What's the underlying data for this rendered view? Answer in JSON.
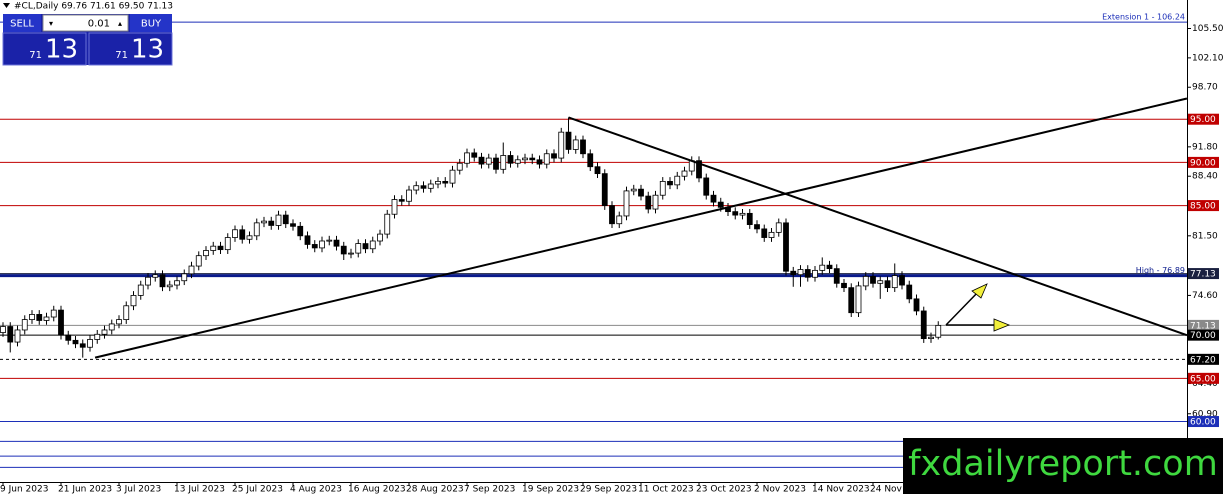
{
  "header": {
    "text": "#CL,Daily 69.76 71.61 69.50 71.13"
  },
  "trade_panel": {
    "sell": "SELL",
    "buy": "BUY",
    "lot": "0.01",
    "sell_small": "71",
    "sell_big": "13",
    "buy_small": "71",
    "buy_big": "13"
  },
  "watermark": "fxdailyreport.com",
  "chart_data": {
    "type": "candlestick",
    "up_color": "#ffffff",
    "down_color": "#000000",
    "outline_color": "#000000",
    "categories": [
      "9 Jun 2023",
      null,
      null,
      null,
      null,
      null,
      null,
      null,
      "21 Jun 2023",
      null,
      null,
      null,
      null,
      null,
      null,
      null,
      "3 Jul 2023",
      null,
      null,
      null,
      null,
      null,
      null,
      null,
      "13 Jul 2023",
      null,
      null,
      null,
      null,
      null,
      null,
      null,
      "25 Jul 2023",
      null,
      null,
      null,
      null,
      null,
      null,
      null,
      "4 Aug 2023",
      null,
      null,
      null,
      null,
      null,
      null,
      null,
      "16 Aug 2023",
      null,
      null,
      null,
      null,
      null,
      null,
      null,
      "28 Aug 2023",
      null,
      null,
      null,
      null,
      null,
      null,
      null,
      "7 Sep 2023",
      null,
      null,
      null,
      null,
      null,
      null,
      null,
      "19 Sep 2023",
      null,
      null,
      null,
      null,
      null,
      null,
      null,
      "29 Sep 2023",
      null,
      null,
      null,
      null,
      null,
      null,
      null,
      "11 Oct 2023",
      null,
      null,
      null,
      null,
      null,
      null,
      null,
      "23 Oct 2023",
      null,
      null,
      null,
      null,
      null,
      null,
      null,
      "2 Nov 2023",
      null,
      null,
      null,
      null,
      null,
      null,
      null,
      "14 Nov 2023",
      null,
      null,
      null,
      null,
      null,
      null,
      null,
      "24 Nov 2023",
      null,
      null,
      null,
      null,
      null,
      null,
      null,
      null,
      null
    ],
    "open": [
      70.3,
      71.0,
      69.2,
      70.6,
      71.8,
      72.4,
      71.7,
      72.1,
      72.9,
      70.0,
      69.4,
      69.0,
      68.6,
      69.5,
      70.1,
      70.6,
      71.3,
      71.8,
      73.4,
      74.6,
      75.8,
      76.7,
      77.0,
      75.6,
      75.8,
      76.3,
      77.1,
      78.0,
      79.2,
      79.8,
      80.3,
      79.9,
      81.3,
      82.2,
      81.1,
      81.5,
      83.0,
      83.2,
      82.7,
      83.9,
      82.9,
      82.6,
      81.5,
      80.5,
      80.1,
      80.9,
      81.0,
      80.3,
      79.4,
      79.5,
      80.6,
      80.0,
      80.9,
      81.7,
      84.0,
      85.7,
      85.5,
      86.8,
      87.3,
      87.0,
      87.5,
      87.8,
      87.6,
      89.1,
      89.9,
      91.1,
      90.6,
      89.8,
      90.5,
      89.2,
      90.8,
      89.9,
      90.3,
      90.5,
      90.3,
      89.8,
      91.0,
      90.5,
      93.5,
      91.5,
      92.6,
      91.0,
      89.5,
      88.7,
      85.0,
      82.9,
      83.8,
      86.7,
      86.9,
      86.1,
      84.6,
      86.2,
      87.8,
      87.4,
      88.4,
      89.0,
      90.2,
      88.2,
      86.2,
      85.4,
      84.8,
      84.3,
      83.9,
      84.1,
      82.8,
      82.3,
      81.3,
      81.9,
      83.0,
      77.4,
      77.0,
      77.6,
      76.7,
      77.5,
      78.1,
      77.7,
      76.0,
      75.5,
      72.6,
      75.7,
      76.8,
      76.0,
      76.3,
      75.5,
      76.9,
      75.8,
      74.2,
      72.8,
      69.6,
      69.76
    ],
    "high": [
      71.5,
      71.5,
      71.1,
      72.3,
      72.9,
      72.9,
      72.6,
      73.4,
      73.4,
      70.5,
      69.9,
      69.5,
      70.0,
      70.6,
      71.1,
      71.8,
      72.3,
      73.9,
      75.1,
      76.3,
      77.2,
      77.5,
      77.5,
      76.3,
      76.8,
      77.6,
      78.5,
      79.7,
      80.3,
      80.8,
      80.8,
      81.8,
      82.7,
      82.7,
      82.0,
      83.5,
      83.7,
      83.7,
      84.4,
      84.4,
      83.4,
      83.1,
      82.0,
      81.0,
      81.4,
      81.5,
      81.5,
      80.8,
      80.0,
      81.1,
      81.1,
      81.4,
      82.2,
      84.5,
      86.2,
      86.2,
      87.3,
      87.8,
      87.8,
      88.0,
      88.3,
      88.3,
      89.6,
      90.4,
      91.6,
      91.6,
      91.1,
      91.0,
      91.0,
      92.3,
      91.3,
      90.8,
      91.0,
      91.0,
      90.8,
      91.5,
      91.5,
      94.0,
      95.2,
      93.1,
      93.1,
      91.5,
      90.0,
      89.2,
      85.5,
      84.3,
      87.2,
      87.4,
      87.4,
      86.6,
      86.7,
      88.3,
      88.3,
      88.9,
      89.5,
      90.7,
      90.7,
      88.7,
      86.7,
      85.9,
      85.3,
      84.8,
      84.6,
      84.6,
      83.3,
      82.8,
      82.4,
      83.5,
      83.5,
      77.9,
      78.1,
      78.1,
      78.0,
      79.0,
      78.6,
      78.2,
      76.5,
      76.0,
      76.2,
      77.3,
      77.3,
      76.8,
      76.8,
      78.3,
      77.4,
      76.3,
      74.7,
      73.3,
      70.3,
      71.61
    ],
    "low": [
      69.8,
      68.0,
      68.7,
      70.1,
      71.3,
      71.2,
      71.2,
      71.6,
      69.5,
      68.9,
      68.5,
      67.4,
      68.1,
      69.0,
      69.6,
      70.1,
      70.8,
      71.3,
      72.9,
      74.1,
      75.3,
      76.2,
      75.1,
      75.1,
      75.3,
      75.8,
      76.6,
      77.5,
      78.7,
      79.3,
      79.4,
      79.4,
      80.8,
      80.6,
      80.6,
      81.0,
      82.5,
      82.2,
      82.2,
      82.4,
      82.1,
      81.0,
      80.0,
      79.6,
      79.6,
      80.4,
      79.8,
      78.7,
      78.9,
      79.0,
      79.5,
      79.5,
      80.4,
      81.2,
      83.5,
      85.0,
      85.0,
      86.3,
      86.5,
      86.5,
      87.0,
      87.1,
      87.1,
      88.6,
      89.4,
      90.1,
      89.3,
      89.3,
      88.7,
      88.7,
      89.4,
      89.4,
      89.8,
      89.8,
      89.3,
      89.3,
      90.0,
      90.0,
      91.0,
      91.0,
      90.5,
      89.0,
      88.2,
      84.5,
      82.4,
      82.4,
      83.3,
      86.2,
      85.6,
      84.1,
      84.1,
      85.7,
      86.9,
      86.9,
      87.9,
      88.5,
      87.7,
      85.7,
      84.9,
      84.3,
      83.8,
      83.4,
      83.4,
      82.3,
      81.8,
      80.8,
      80.8,
      81.4,
      76.9,
      75.6,
      75.6,
      76.2,
      76.2,
      77.0,
      77.2,
      75.5,
      75.0,
      72.1,
      72.1,
      75.2,
      75.5,
      74.2,
      75.0,
      75.0,
      75.3,
      73.7,
      72.3,
      69.1,
      69.1,
      69.5
    ],
    "close": [
      71.0,
      69.2,
      70.6,
      71.8,
      72.4,
      71.7,
      72.1,
      72.9,
      70.0,
      69.4,
      69.0,
      68.6,
      69.5,
      70.1,
      70.6,
      71.3,
      71.8,
      73.4,
      74.6,
      75.8,
      76.7,
      77.0,
      75.6,
      75.8,
      76.3,
      77.1,
      78.0,
      79.2,
      79.8,
      80.3,
      79.9,
      81.3,
      82.2,
      81.1,
      81.5,
      83.0,
      83.2,
      82.7,
      83.9,
      82.9,
      82.6,
      81.5,
      80.5,
      80.1,
      80.9,
      81.0,
      80.3,
      79.4,
      79.5,
      80.6,
      80.0,
      80.9,
      81.7,
      84.0,
      85.7,
      85.5,
      86.8,
      87.3,
      87.0,
      87.5,
      87.8,
      87.6,
      89.1,
      89.9,
      91.1,
      90.6,
      89.8,
      90.5,
      89.2,
      90.8,
      89.9,
      90.3,
      90.5,
      90.3,
      89.8,
      91.0,
      90.5,
      93.5,
      91.5,
      92.6,
      91.0,
      89.5,
      88.7,
      85.0,
      82.9,
      83.8,
      86.7,
      86.9,
      86.1,
      84.6,
      86.2,
      87.8,
      87.4,
      88.4,
      89.0,
      90.2,
      88.2,
      86.2,
      85.4,
      84.8,
      84.3,
      83.9,
      84.1,
      82.8,
      82.3,
      81.3,
      81.9,
      83.0,
      77.4,
      77.0,
      77.6,
      76.7,
      77.5,
      78.1,
      77.7,
      76.0,
      75.5,
      72.6,
      75.7,
      76.8,
      76.0,
      76.3,
      75.5,
      76.9,
      75.8,
      74.2,
      72.8,
      69.6,
      69.76,
      71.13
    ],
    "ylim": [
      53,
      108.8
    ],
    "yticks": [
      {
        "value": 105.5,
        "label": "105.50"
      },
      {
        "value": 102.1,
        "label": "102.10"
      },
      {
        "value": 98.7,
        "label": "98.70"
      },
      {
        "value": 91.8,
        "label": "91.80"
      },
      {
        "value": 88.4,
        "label": "88.40"
      },
      {
        "value": 81.5,
        "label": "81.50"
      },
      {
        "value": 74.6,
        "label": "74.60"
      },
      {
        "value": 64.4,
        "label": "64.40"
      },
      {
        "value": 60.9,
        "label": "60.90"
      }
    ],
    "levels": [
      {
        "value": 106.24,
        "color": "#1c2fb8",
        "text": "Extension 1 - 106.24"
      },
      {
        "value": 95,
        "label": "95.00",
        "color": "#c00000"
      },
      {
        "value": 90,
        "label": "90.00",
        "color": "#c00000"
      },
      {
        "value": 85,
        "label": "85.00",
        "color": "#c00000"
      },
      {
        "value": 76.89,
        "color": "#0a1a8c",
        "text": "High - 76.89",
        "width": 3
      },
      {
        "value": 77.13,
        "label": "77.13",
        "color": "#1a2040"
      },
      {
        "value": 71.13,
        "label": "71.13",
        "color": "#8a8a8a"
      },
      {
        "value": 70,
        "label": "70.00",
        "color": "#000000"
      },
      {
        "value": 67.2,
        "label": "67.20",
        "color": "#000000",
        "dashed": true
      },
      {
        "value": 65,
        "label": "65.00",
        "color": "#c00000"
      },
      {
        "value": 60,
        "label": "60.00",
        "color": "#1c2fb8"
      },
      {
        "value": 57.7,
        "color": "#1c2fb8"
      },
      {
        "value": 56.0,
        "color": "#1c2fb8"
      },
      {
        "value": 54.7,
        "color": "#1c2fb8"
      }
    ],
    "trend_lines": [
      {
        "from": [
          12.7,
          67.4
        ],
        "to": [
          163.3,
          97.4
        ]
      },
      {
        "from": [
          78,
          95.2
        ],
        "to": [
          163.3,
          70.0
        ]
      }
    ]
  }
}
